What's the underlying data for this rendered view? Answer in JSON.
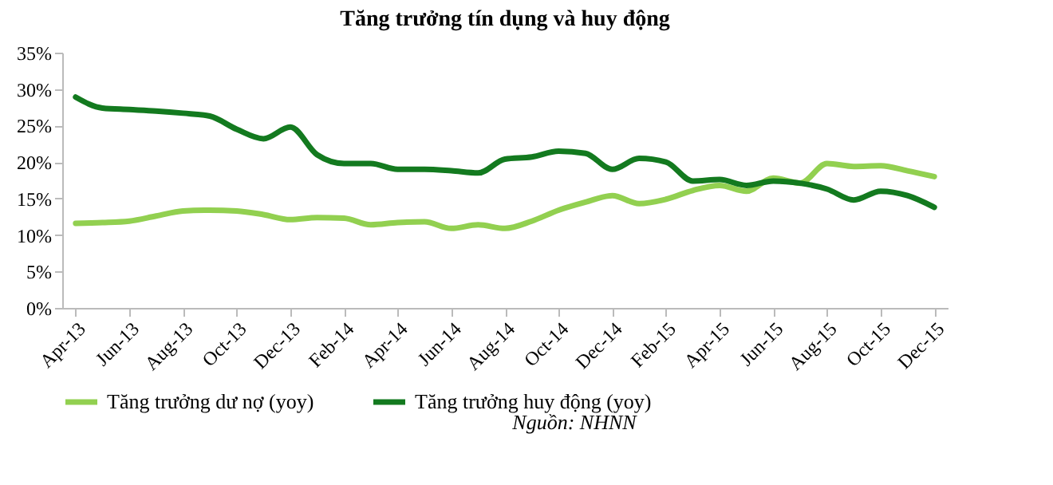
{
  "chart_data": {
    "type": "line",
    "title": "Tăng trưởng tín dụng và huy động",
    "categories": [
      "Apr-13",
      null,
      "Jun-13",
      null,
      "Aug-13",
      null,
      "Oct-13",
      null,
      "Dec-13",
      null,
      "Feb-14",
      null,
      "Apr-14",
      null,
      "Jun-14",
      null,
      "Aug-14",
      null,
      "Oct-14",
      null,
      "Dec-14",
      null,
      "Feb-15",
      null,
      "Apr-15",
      null,
      "Jun-15",
      null,
      "Aug-15",
      null,
      "Oct-15",
      null,
      "Dec-15"
    ],
    "series": [
      {
        "name": "Tăng trưởng dư nợ (yoy)",
        "color": "#92d050",
        "values": [
          11.6,
          11.7,
          11.9,
          12.6,
          13.3,
          13.4,
          13.3,
          12.8,
          12.1,
          12.4,
          12.3,
          11.4,
          11.7,
          11.8,
          10.9,
          11.4,
          10.9,
          11.9,
          13.4,
          14.5,
          15.4,
          14.3,
          14.9,
          16.1,
          16.8,
          16.0,
          17.8,
          17.1,
          19.8,
          19.4,
          19.5,
          18.8,
          18.0
        ]
      },
      {
        "name": "Tăng trưởng huy động (yoy)",
        "color": "#137a1f",
        "values": [
          28.9,
          27.4,
          27.2,
          27.0,
          26.7,
          26.3,
          24.5,
          23.2,
          24.8,
          21.0,
          19.8,
          19.8,
          19.0,
          19.0,
          18.8,
          18.5,
          20.4,
          20.7,
          21.5,
          21.2,
          19.0,
          20.5,
          20.0,
          17.4,
          17.6,
          16.8,
          17.4,
          17.1,
          16.3,
          14.8,
          16.0,
          15.4,
          13.8
        ]
      }
    ],
    "ylim": [
      0,
      35
    ],
    "yticks": [
      {
        "value": 0,
        "label": "0%"
      },
      {
        "value": 5,
        "label": "5%"
      },
      {
        "value": 10,
        "label": "10%"
      },
      {
        "value": 15,
        "label": "15%"
      },
      {
        "value": 20,
        "label": "20%"
      },
      {
        "value": 25,
        "label": "25%"
      },
      {
        "value": 30,
        "label": "30%"
      },
      {
        "value": 35,
        "label": "35%"
      }
    ],
    "legend": "bottom",
    "annotations": [
      "Nguồn: NHNN"
    ]
  }
}
